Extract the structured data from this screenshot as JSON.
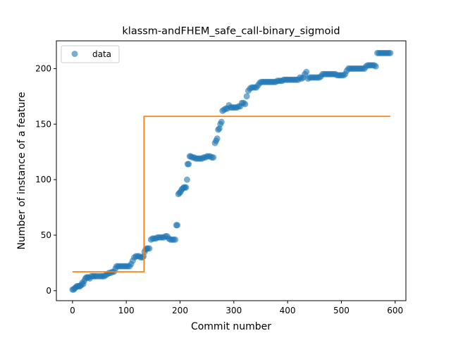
{
  "chart_data": {
    "type": "scatter",
    "title": "klassm-andFHEM_safe_call-binary_sigmoid",
    "xlabel": "Commit number",
    "ylabel": "Number of instance of a feature",
    "xlim": [
      -30,
      620
    ],
    "ylim": [
      -9,
      225
    ],
    "xticks": [
      0,
      100,
      200,
      300,
      400,
      500,
      600
    ],
    "yticks": [
      0,
      50,
      100,
      150,
      200
    ],
    "legend": {
      "position": "top-left",
      "entries": [
        "data"
      ]
    },
    "colors": {
      "points": "#1f77b4",
      "fit": "#ff7f0e"
    },
    "series": [
      {
        "name": "data",
        "kind": "scatter",
        "points": [
          [
            0,
            1
          ],
          [
            2,
            1
          ],
          [
            4,
            2
          ],
          [
            6,
            3
          ],
          [
            8,
            4
          ],
          [
            10,
            4
          ],
          [
            12,
            4
          ],
          [
            14,
            4
          ],
          [
            16,
            5
          ],
          [
            18,
            7
          ],
          [
            20,
            6
          ],
          [
            22,
            9
          ],
          [
            24,
            11
          ],
          [
            26,
            12
          ],
          [
            28,
            12
          ],
          [
            30,
            12
          ],
          [
            32,
            11
          ],
          [
            35,
            13
          ],
          [
            38,
            13
          ],
          [
            40,
            13
          ],
          [
            43,
            13
          ],
          [
            46,
            13
          ],
          [
            50,
            13
          ],
          [
            53,
            13
          ],
          [
            56,
            13
          ],
          [
            59,
            13
          ],
          [
            62,
            14
          ],
          [
            65,
            15
          ],
          [
            68,
            16
          ],
          [
            71,
            16
          ],
          [
            74,
            17
          ],
          [
            77,
            17
          ],
          [
            80,
            20
          ],
          [
            82,
            22
          ],
          [
            85,
            22
          ],
          [
            88,
            22
          ],
          [
            91,
            22
          ],
          [
            94,
            22
          ],
          [
            97,
            22
          ],
          [
            100,
            22
          ],
          [
            103,
            22
          ],
          [
            106,
            22
          ],
          [
            109,
            24
          ],
          [
            112,
            27
          ],
          [
            115,
            30
          ],
          [
            118,
            31
          ],
          [
            121,
            31
          ],
          [
            124,
            31
          ],
          [
            127,
            30
          ],
          [
            130,
            30
          ],
          [
            132,
            31
          ],
          [
            134,
            35
          ],
          [
            136,
            37
          ],
          [
            138,
            38
          ],
          [
            140,
            38
          ],
          [
            143,
            38
          ],
          [
            146,
            46
          ],
          [
            149,
            47
          ],
          [
            152,
            47
          ],
          [
            155,
            47
          ],
          [
            158,
            48
          ],
          [
            161,
            48
          ],
          [
            164,
            48
          ],
          [
            167,
            48
          ],
          [
            170,
            48
          ],
          [
            173,
            49
          ],
          [
            176,
            49
          ],
          [
            179,
            47
          ],
          [
            182,
            46
          ],
          [
            185,
            46
          ],
          [
            188,
            46
          ],
          [
            191,
            46
          ],
          [
            193,
            59
          ],
          [
            195,
            59
          ],
          [
            197,
            87
          ],
          [
            199,
            88
          ],
          [
            201,
            89
          ],
          [
            203,
            91
          ],
          [
            205,
            92
          ],
          [
            207,
            93
          ],
          [
            209,
            93
          ],
          [
            211,
            93
          ],
          [
            213,
            100
          ],
          [
            214,
            114
          ],
          [
            216,
            114
          ],
          [
            218,
            121
          ],
          [
            220,
            121
          ],
          [
            223,
            120
          ],
          [
            226,
            120
          ],
          [
            229,
            119
          ],
          [
            232,
            119
          ],
          [
            235,
            119
          ],
          [
            238,
            119
          ],
          [
            241,
            119
          ],
          [
            244,
            120
          ],
          [
            247,
            120
          ],
          [
            250,
            121
          ],
          [
            253,
            121
          ],
          [
            256,
            121
          ],
          [
            259,
            120
          ],
          [
            262,
            120
          ],
          [
            265,
            133
          ],
          [
            267,
            135
          ],
          [
            269,
            137
          ],
          [
            271,
            145
          ],
          [
            273,
            146
          ],
          [
            275,
            150
          ],
          [
            277,
            152
          ],
          [
            279,
            162
          ],
          [
            282,
            163
          ],
          [
            285,
            164
          ],
          [
            288,
            164
          ],
          [
            291,
            167
          ],
          [
            294,
            165
          ],
          [
            297,
            165
          ],
          [
            300,
            165
          ],
          [
            303,
            165
          ],
          [
            306,
            165
          ],
          [
            309,
            166
          ],
          [
            312,
            166
          ],
          [
            315,
            169
          ],
          [
            318,
            169
          ],
          [
            321,
            168
          ],
          [
            324,
            175
          ],
          [
            327,
            180
          ],
          [
            330,
            182
          ],
          [
            333,
            183
          ],
          [
            336,
            183
          ],
          [
            339,
            183
          ],
          [
            342,
            183
          ],
          [
            345,
            185
          ],
          [
            348,
            187
          ],
          [
            351,
            188
          ],
          [
            354,
            188
          ],
          [
            357,
            188
          ],
          [
            360,
            188
          ],
          [
            363,
            188
          ],
          [
            366,
            188
          ],
          [
            369,
            188
          ],
          [
            372,
            188
          ],
          [
            375,
            188
          ],
          [
            378,
            188
          ],
          [
            381,
            189
          ],
          [
            384,
            189
          ],
          [
            387,
            189
          ],
          [
            390,
            189
          ],
          [
            393,
            190
          ],
          [
            396,
            190
          ],
          [
            399,
            190
          ],
          [
            402,
            190
          ],
          [
            405,
            190
          ],
          [
            408,
            190
          ],
          [
            411,
            190
          ],
          [
            414,
            190
          ],
          [
            417,
            190
          ],
          [
            420,
            190
          ],
          [
            423,
            192
          ],
          [
            426,
            191
          ],
          [
            429,
            192
          ],
          [
            432,
            195
          ],
          [
            435,
            197
          ],
          [
            438,
            191
          ],
          [
            441,
            192
          ],
          [
            444,
            192
          ],
          [
            447,
            192
          ],
          [
            450,
            192
          ],
          [
            453,
            192
          ],
          [
            456,
            192
          ],
          [
            459,
            192
          ],
          [
            462,
            193
          ],
          [
            465,
            195
          ],
          [
            468,
            195
          ],
          [
            471,
            195
          ],
          [
            474,
            195
          ],
          [
            477,
            195
          ],
          [
            480,
            195
          ],
          [
            483,
            195
          ],
          [
            486,
            195
          ],
          [
            489,
            195
          ],
          [
            492,
            194
          ],
          [
            495,
            194
          ],
          [
            498,
            194
          ],
          [
            501,
            194
          ],
          [
            504,
            194
          ],
          [
            507,
            195
          ],
          [
            510,
            198
          ],
          [
            513,
            200
          ],
          [
            516,
            200
          ],
          [
            519,
            200
          ],
          [
            522,
            200
          ],
          [
            525,
            200
          ],
          [
            528,
            200
          ],
          [
            531,
            200
          ],
          [
            534,
            200
          ],
          [
            537,
            200
          ],
          [
            540,
            200
          ],
          [
            543,
            200
          ],
          [
            546,
            202
          ],
          [
            549,
            203
          ],
          [
            552,
            203
          ],
          [
            555,
            203
          ],
          [
            558,
            203
          ],
          [
            561,
            203
          ],
          [
            564,
            202
          ],
          [
            567,
            214
          ],
          [
            570,
            214
          ],
          [
            573,
            214
          ],
          [
            576,
            214
          ],
          [
            579,
            214
          ],
          [
            582,
            214
          ],
          [
            585,
            214
          ],
          [
            588,
            214
          ],
          [
            591,
            214
          ]
        ]
      },
      {
        "kind": "line",
        "points": [
          [
            0,
            17
          ],
          [
            133,
            17
          ],
          [
            133,
            157
          ],
          [
            591,
            157
          ]
        ]
      }
    ]
  }
}
